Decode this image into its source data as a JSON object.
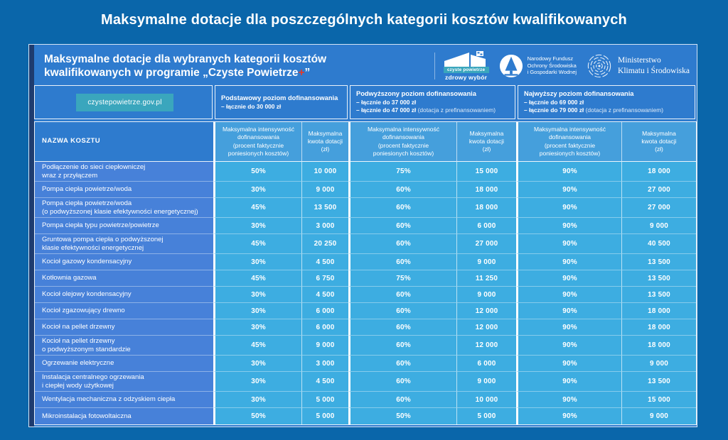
{
  "title": "Maksymalne dotacje dla poszczególnych kategorii kosztów kwalifikowanych",
  "header": {
    "subtitle": "Maksymalne dotacje dla wybranych kategorii kosztów\nkwalifikowanych w programie „Czyste Powietrze",
    "subtitle_plus": "+",
    "subtitle_close": "”",
    "logos": {
      "czyste_powietrze": {
        "line1": "czyste powietrze",
        "line2": "zdrowy wybór"
      },
      "nfosigw": "Narodowy Fundusz\nOchrony Środowiska\ni Gospodarki Wodnej",
      "ministerstwo": "Ministerstwo\nKlimatu i Środowiska"
    }
  },
  "badge": "czystepowietrze.gov.pl",
  "table": {
    "name_header": "NAZWA KOSZTU",
    "groups": [
      {
        "title": "Podstawowy poziom dofinansowania",
        "lines": [
          {
            "bold": "– łącznie do 30 000 zł",
            "normal": ""
          }
        ]
      },
      {
        "title": "Podwyższony poziom dofinansowania",
        "lines": [
          {
            "bold": "– łącznie do 37 000 zł",
            "normal": ""
          },
          {
            "bold": "– łącznie do 47 000 zł",
            "normal": " (dotacja z prefinansowaniem)"
          }
        ]
      },
      {
        "title": "Najwyższy poziom dofinansowania",
        "lines": [
          {
            "bold": "– łącznie do 69 000 zł",
            "normal": ""
          },
          {
            "bold": "– łącznie do 79 000 zł",
            "normal": " (dotacja z prefinansowaniem)"
          }
        ]
      }
    ],
    "subheader_intensity": "Maksymalna intensywność\ndofinansowania\n(procent faktycznie\nponiesionych kosztów)",
    "subheader_amount": "Maksymalna\nkwota dotacji\n(zł)",
    "rows": [
      {
        "name": "Podłączenie do sieci ciepłowniczej\nwraz z przyłączem",
        "values": [
          "50%",
          "10 000",
          "75%",
          "15 000",
          "90%",
          "18 000"
        ]
      },
      {
        "name": "Pompa ciepła powietrze/woda",
        "values": [
          "30%",
          "9 000",
          "60%",
          "18 000",
          "90%",
          "27 000"
        ]
      },
      {
        "name": "Pompa ciepła powietrze/woda\n(o podwyższonej klasie efektywności energetycznej)",
        "values": [
          "45%",
          "13 500",
          "60%",
          "18 000",
          "90%",
          "27 000"
        ]
      },
      {
        "name": "Pompa ciepła typu powietrze/powietrze",
        "values": [
          "30%",
          "3 000",
          "60%",
          "6 000",
          "90%",
          "9 000"
        ]
      },
      {
        "name": "Gruntowa pompa ciepła o podwyższonej\nklasie efektywności energetycznej",
        "values": [
          "45%",
          "20 250",
          "60%",
          "27 000",
          "90%",
          "40 500"
        ]
      },
      {
        "name": "Kocioł gazowy kondensacyjny",
        "values": [
          "30%",
          "4 500",
          "60%",
          "9 000",
          "90%",
          "13 500"
        ]
      },
      {
        "name": "Kotłownia gazowa",
        "values": [
          "45%",
          "6 750",
          "75%",
          "11 250",
          "90%",
          "13 500"
        ]
      },
      {
        "name": "Kocioł olejowy kondensacyjny",
        "values": [
          "30%",
          "4 500",
          "60%",
          "9 000",
          "90%",
          "13 500"
        ]
      },
      {
        "name": "Kocioł zgazowujący drewno",
        "values": [
          "30%",
          "6 000",
          "60%",
          "12 000",
          "90%",
          "18 000"
        ]
      },
      {
        "name": "Kocioł na pellet drzewny",
        "values": [
          "30%",
          "6 000",
          "60%",
          "12 000",
          "90%",
          "18 000"
        ]
      },
      {
        "name": "Kocioł na pellet drzewny\no podwyższonym standardzie",
        "values": [
          "45%",
          "9 000",
          "60%",
          "12 000",
          "90%",
          "18 000"
        ]
      },
      {
        "name": "Ogrzewanie elektryczne",
        "values": [
          "30%",
          "3 000",
          "60%",
          "6 000",
          "90%",
          "9 000"
        ]
      },
      {
        "name": "Instalacja centralnego ogrzewania\ni ciepłej wody użytkowej",
        "values": [
          "30%",
          "4 500",
          "60%",
          "9 000",
          "90%",
          "13 500"
        ]
      },
      {
        "name": "Wentylacja mechaniczna z odzyskiem ciepła",
        "values": [
          "30%",
          "5 000",
          "60%",
          "10 000",
          "90%",
          "15 000"
        ]
      },
      {
        "name": "Mikroinstalacja fotowoltaiczna",
        "values": [
          "50%",
          "5 000",
          "50%",
          "5 000",
          "90%",
          "9 000"
        ]
      }
    ]
  },
  "colors": {
    "page_bg": "#0a66aa",
    "panel_bg": "#2e7bce",
    "accent_strip": "#1e3c6f",
    "name_cell_bg": "#4781d9",
    "value_cell_bg": "#3dade1",
    "subheader_cell_bg": "#459fdc",
    "badge_bg": "#3aa6bd",
    "plus_red": "#e13a2c"
  }
}
